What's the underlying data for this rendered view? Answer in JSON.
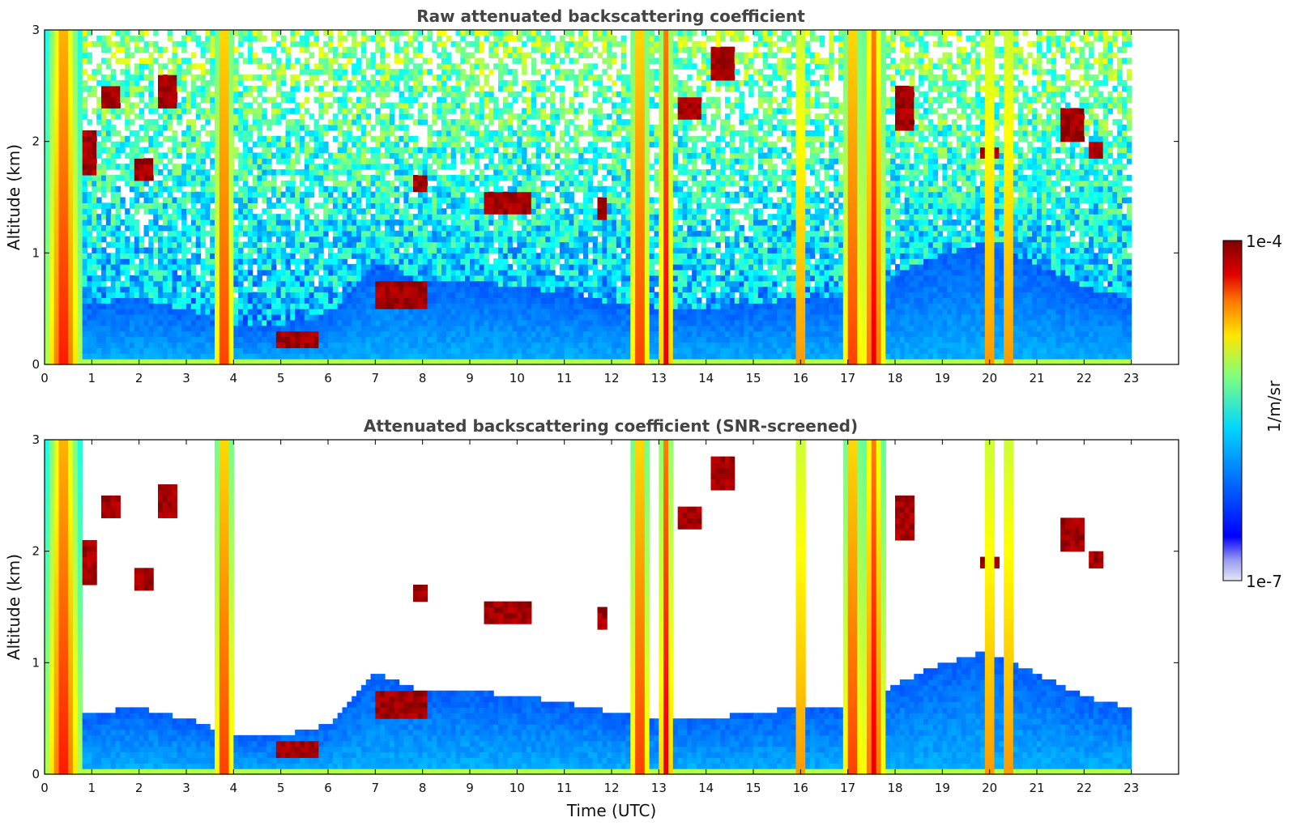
{
  "chart_data": [
    {
      "type": "heatmap",
      "title": "Raw attenuated backscattering coefficient",
      "xlabel": "",
      "ylabel": "Altitude (km)",
      "xlim": [
        0,
        24
      ],
      "ylim": [
        0,
        3
      ],
      "x_ticks": [
        "0",
        "1",
        "2",
        "3",
        "4",
        "5",
        "6",
        "7",
        "8",
        "9",
        "10",
        "11",
        "12",
        "13",
        "14",
        "15",
        "16",
        "17",
        "18",
        "19",
        "20",
        "21",
        "22",
        "23"
      ],
      "y_ticks": [
        "0",
        "1",
        "2",
        "3"
      ],
      "data_end_time": 23,
      "screened": false,
      "features": {
        "boundary_layer_top_km": [
          [
            0,
            0.6
          ],
          [
            1,
            0.55
          ],
          [
            2,
            0.6
          ],
          [
            3,
            0.5
          ],
          [
            4,
            0.35
          ],
          [
            5,
            0.35
          ],
          [
            6,
            0.45
          ],
          [
            7,
            0.9
          ],
          [
            8,
            0.75
          ],
          [
            9,
            0.75
          ],
          [
            10,
            0.7
          ],
          [
            11,
            0.65
          ],
          [
            12,
            0.55
          ],
          [
            13,
            0.5
          ],
          [
            14,
            0.5
          ],
          [
            15,
            0.55
          ],
          [
            16,
            0.6
          ],
          [
            17,
            0.6
          ],
          [
            18,
            0.8
          ],
          [
            19,
            1.0
          ],
          [
            20,
            1.1
          ],
          [
            21,
            0.9
          ],
          [
            22,
            0.7
          ],
          [
            23,
            0.6
          ]
        ],
        "precipitation_columns": [
          [
            0.05,
            0.75
          ],
          [
            3.6,
            4.0
          ],
          [
            12.4,
            12.8
          ],
          [
            13.0,
            13.3
          ],
          [
            15.9,
            16.1
          ],
          [
            16.9,
            17.3
          ],
          [
            17.3,
            17.8
          ],
          [
            19.9,
            20.1
          ],
          [
            20.3,
            20.5
          ]
        ],
        "cloud_patches": [
          {
            "t": [
              0.5,
              1.1
            ],
            "z": [
              1.7,
              2.1
            ]
          },
          {
            "t": [
              1.2,
              1.6
            ],
            "z": [
              2.3,
              2.5
            ]
          },
          {
            "t": [
              1.9,
              2.3
            ],
            "z": [
              1.65,
              1.85
            ]
          },
          {
            "t": [
              2.4,
              2.8
            ],
            "z": [
              2.3,
              2.6
            ]
          },
          {
            "t": [
              4.9,
              5.8
            ],
            "z": [
              0.15,
              0.3
            ]
          },
          {
            "t": [
              7.0,
              8.1
            ],
            "z": [
              0.5,
              0.75
            ]
          },
          {
            "t": [
              7.8,
              8.1
            ],
            "z": [
              1.55,
              1.7
            ]
          },
          {
            "t": [
              9.3,
              10.3
            ],
            "z": [
              1.35,
              1.55
            ]
          },
          {
            "t": [
              11.7,
              11.9
            ],
            "z": [
              1.3,
              1.5
            ]
          },
          {
            "t": [
              13.4,
              13.9
            ],
            "z": [
              2.2,
              2.4
            ]
          },
          {
            "t": [
              14.1,
              14.6
            ],
            "z": [
              2.55,
              2.85
            ]
          },
          {
            "t": [
              18.0,
              18.4
            ],
            "z": [
              2.1,
              2.5
            ]
          },
          {
            "t": [
              19.8,
              20.2
            ],
            "z": [
              1.85,
              1.95
            ]
          },
          {
            "t": [
              21.5,
              22.0
            ],
            "z": [
              2.0,
              2.3
            ]
          },
          {
            "t": [
              22.1,
              22.4
            ],
            "z": [
              1.85,
              2.0
            ]
          }
        ]
      }
    },
    {
      "type": "heatmap",
      "title": "Attenuated backscattering coefficient (SNR-screened)",
      "xlabel": "Time (UTC)",
      "ylabel": "Altitude (km)",
      "xlim": [
        0,
        24
      ],
      "ylim": [
        0,
        3
      ],
      "x_ticks": [
        "0",
        "1",
        "2",
        "3",
        "4",
        "5",
        "6",
        "7",
        "8",
        "9",
        "10",
        "11",
        "12",
        "13",
        "14",
        "15",
        "16",
        "17",
        "18",
        "19",
        "20",
        "21",
        "22",
        "23"
      ],
      "y_ticks": [
        "0",
        "1",
        "2",
        "3"
      ],
      "data_end_time": 23,
      "screened": true
    }
  ],
  "colorbar": {
    "label": "1/m/sr",
    "max_label": "1e-4",
    "min_label": "1e-7",
    "scale": "log",
    "range": [
      1e-07,
      0.0001
    ],
    "colormap": "jet",
    "colors": {
      "lowest": "#e6e6f6",
      "low": "#9a9af0",
      "blue": "#0000ff",
      "cyan": "#00d7ff",
      "green": "#7fff7f",
      "yellow": "#ffe600",
      "orange": "#ff7a00",
      "red": "#e00000",
      "dark_red": "#7f0000"
    }
  }
}
